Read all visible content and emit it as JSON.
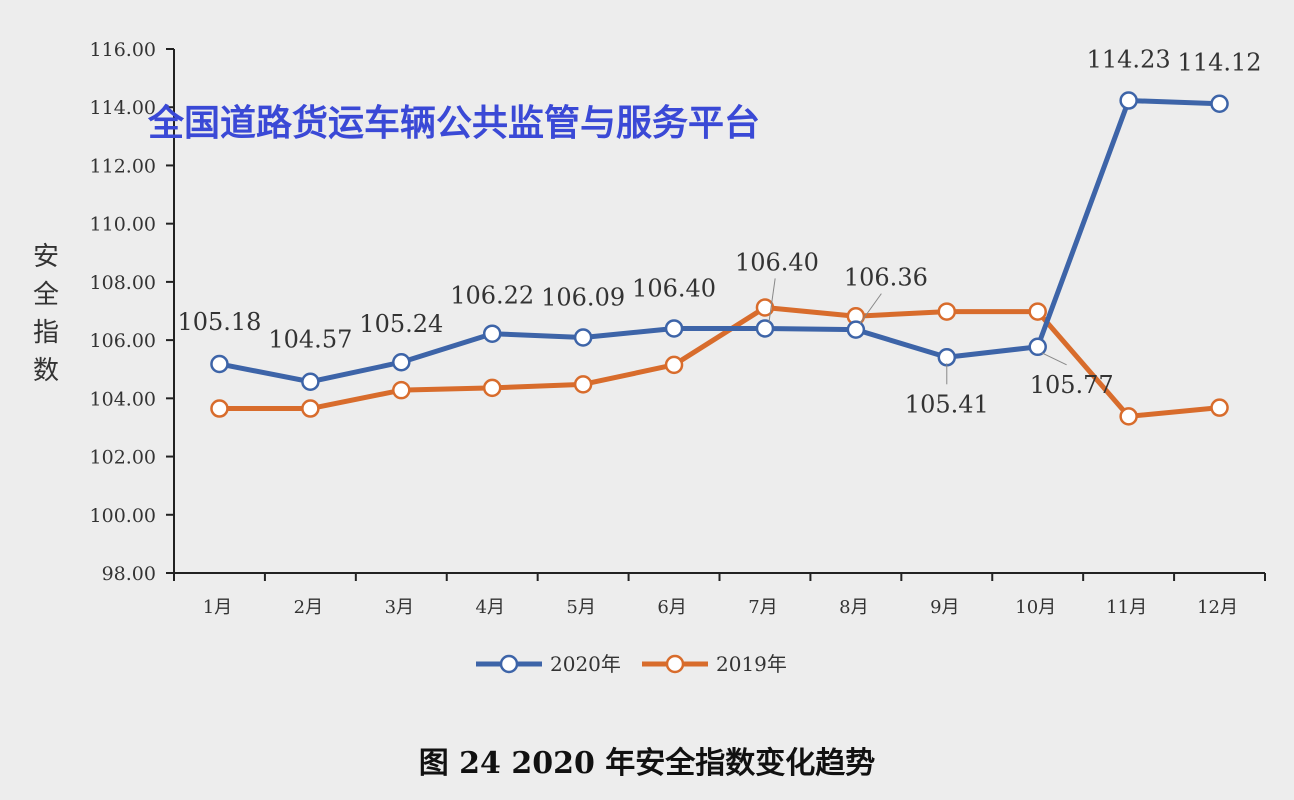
{
  "watermark": "全国道路货运车辆公共监管与服务平台",
  "caption": "图 24  2020 年安全指数变化趋势",
  "chart_data": {
    "type": "line",
    "ylabel": "安全指数",
    "xlabel": "",
    "ylim": [
      98,
      116
    ],
    "yticks": [
      "98.00",
      "100.00",
      "102.00",
      "104.00",
      "106.00",
      "108.00",
      "110.00",
      "112.00",
      "114.00",
      "116.00"
    ],
    "categories": [
      "1月",
      "2月",
      "3月",
      "4月",
      "5月",
      "6月",
      "7月",
      "8月",
      "9月",
      "10月",
      "11月",
      "12月"
    ],
    "series": [
      {
        "name": "2020年",
        "color": "#3d64a8",
        "values": [
          105.18,
          104.57,
          105.24,
          106.22,
          106.09,
          106.4,
          106.4,
          106.36,
          105.41,
          105.77,
          114.23,
          114.12
        ],
        "labels": [
          "105.18",
          "104.57",
          "105.24",
          "106.22",
          "106.09",
          "106.40",
          "106.40",
          "106.36",
          "105.41",
          "105.77",
          "114.23",
          "114.12"
        ]
      },
      {
        "name": "2019年",
        "color": "#d86c2c",
        "values": [
          103.65,
          103.65,
          104.28,
          104.36,
          104.48,
          105.15,
          107.12,
          106.82,
          106.98,
          106.98,
          103.38,
          103.68
        ]
      }
    ],
    "legend_position": "bottom",
    "grid": false
  }
}
